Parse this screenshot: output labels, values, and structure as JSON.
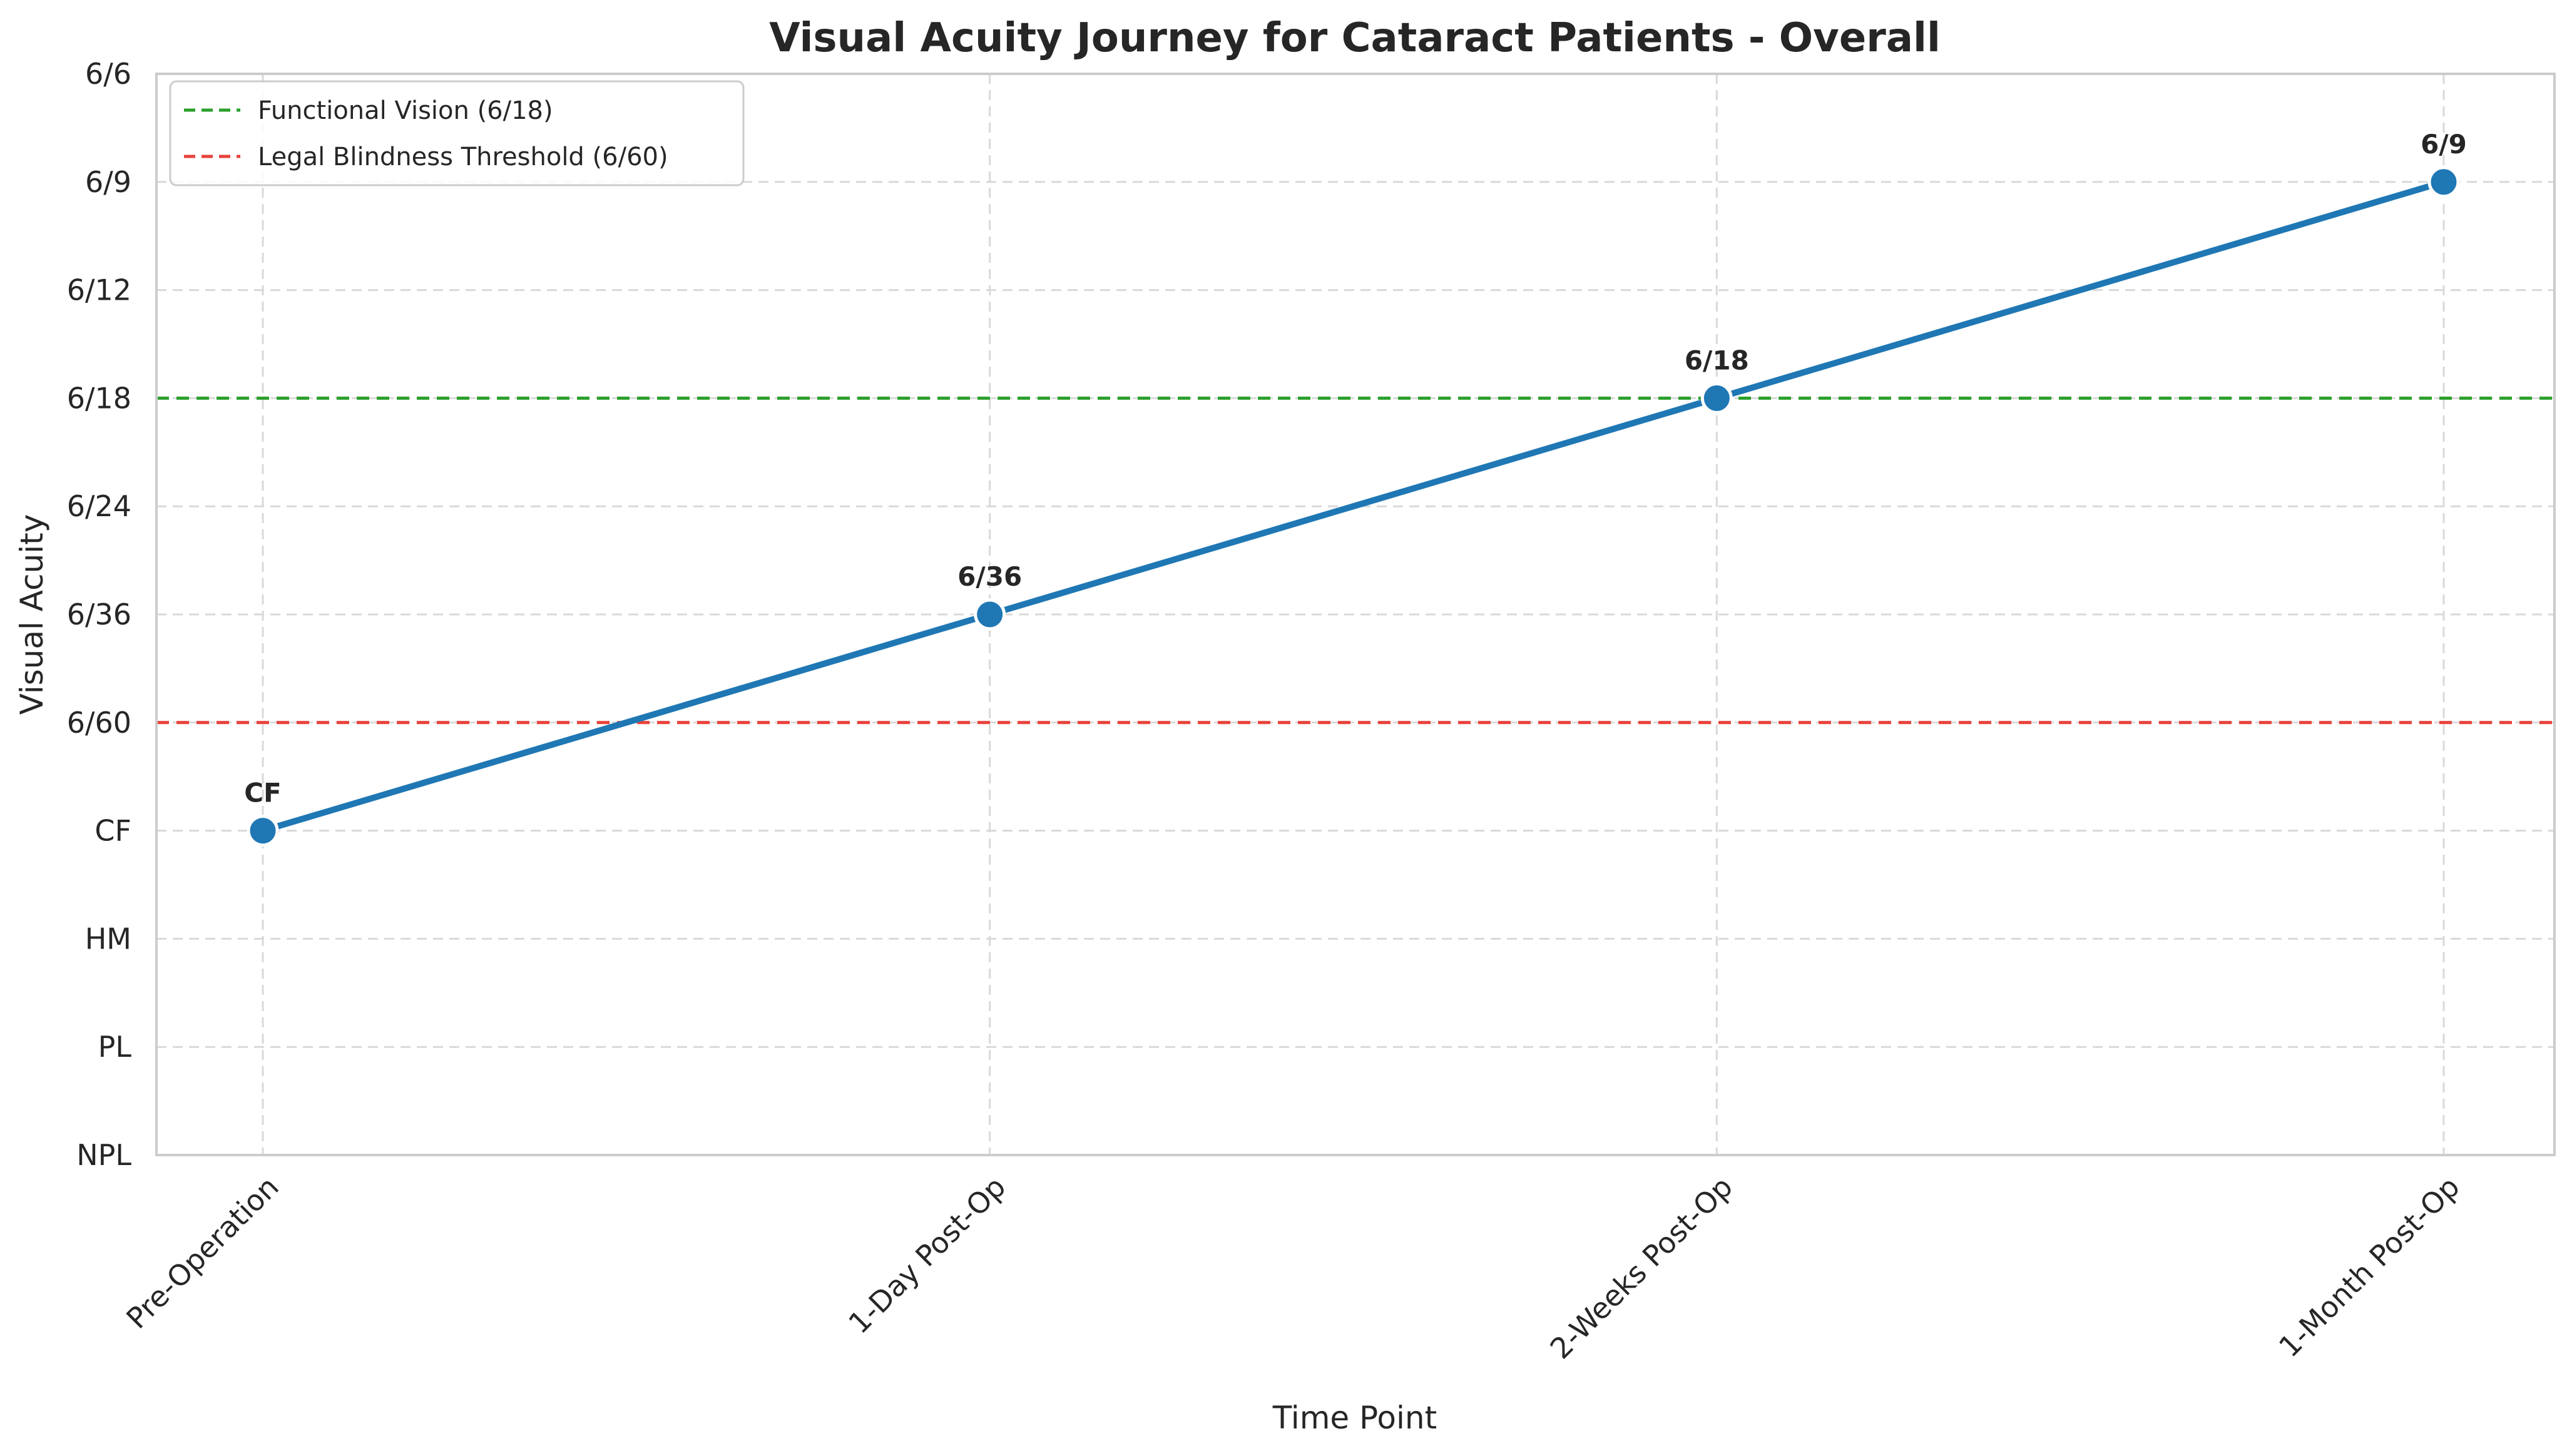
{
  "chart_data": {
    "type": "line",
    "title": "Visual Acuity Journey for Cataract Patients - Overall",
    "xlabel": "Time Point",
    "ylabel": "Visual Acuity",
    "categories": [
      "Pre-Operation",
      "1-Day Post-Op",
      "2-Weeks Post-Op",
      "1-Month Post-Op"
    ],
    "y_ticks": [
      "NPL",
      "PL",
      "HM",
      "CF",
      "6/60",
      "6/36",
      "6/24",
      "6/18",
      "6/12",
      "6/9",
      "6/6"
    ],
    "series": [
      {
        "values": [
          "CF",
          "6/36",
          "6/18",
          "6/9"
        ],
        "data_labels": [
          "CF",
          "6/36",
          "6/18",
          "6/9"
        ],
        "color": "#1f77b4"
      }
    ],
    "reference_lines": [
      {
        "label": "Functional Vision (6/18)",
        "value": "6/18",
        "color": "#2ca02c"
      },
      {
        "label": "Legal Blindness Threshold (6/60)",
        "value": "6/60",
        "color": "#e8413a"
      }
    ],
    "grid": true,
    "legend_position": "top-left"
  }
}
